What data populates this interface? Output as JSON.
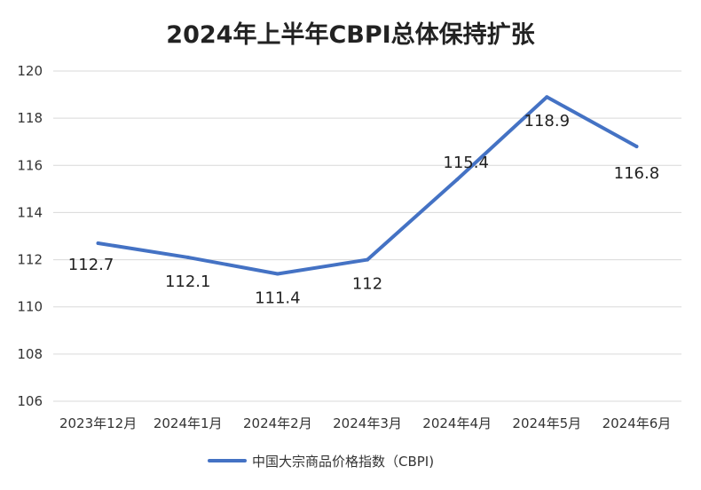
{
  "chart_data": {
    "type": "line",
    "title": "2024年上半年CBPI总体保持扩张",
    "xlabel": "",
    "ylabel": "",
    "categories": [
      "2023年12月",
      "2024年1月",
      "2024年2月",
      "2024年3月",
      "2024年4月",
      "2024年5月",
      "2024年6月"
    ],
    "series": [
      {
        "name": "中国大宗商品价格指数（CBPI)",
        "values": [
          112.7,
          112.1,
          111.4,
          112,
          115.4,
          118.9,
          116.8
        ],
        "labels": [
          "112.7",
          "112.1",
          "111.4",
          "112",
          "115.4",
          "118.9",
          "116.8"
        ],
        "color": "#4472c4"
      }
    ],
    "ylim": [
      106,
      120
    ],
    "yticks": [
      106,
      108,
      110,
      112,
      114,
      116,
      118,
      120
    ],
    "grid": true,
    "legend": "bottom"
  }
}
